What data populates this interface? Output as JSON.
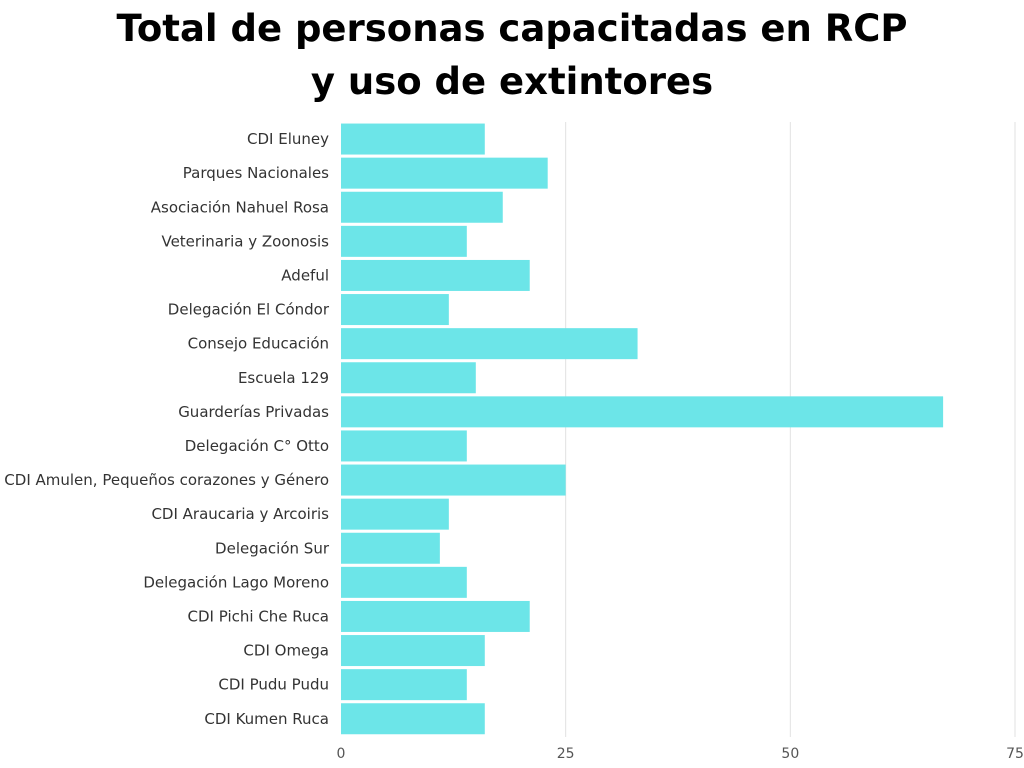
{
  "chart_data": {
    "type": "bar",
    "orientation": "horizontal",
    "title": "Total de personas capacitadas en RCP y uso de extintores",
    "title_lines": [
      "Total de personas capacitadas en RCP",
      "y uso de extintores"
    ],
    "xlabel": "",
    "ylabel": "",
    "categories": [
      "CDI Eluney",
      "Parques Nacionales",
      "Asociación Nahuel Rosa",
      "Veterinaria y Zoonosis",
      "Adeful",
      "Delegación El Cóndor",
      "Consejo Educación",
      "Escuela 129",
      "Guarderías Privadas",
      "Delegación C° Otto",
      "CDI Amulen, Pequeños corazones y Género",
      "CDI Araucaria y Arcoiris",
      "Delegación Sur",
      "Delegación Lago Moreno",
      "CDI Pichi Che Ruca",
      "CDI Omega",
      "CDI Pudu Pudu",
      "CDI Kumen Ruca"
    ],
    "values": [
      16,
      23,
      18,
      14,
      21,
      12,
      33,
      15,
      67,
      14,
      25,
      12,
      11,
      14,
      21,
      16,
      14,
      16
    ],
    "xlim": [
      0,
      75
    ],
    "xticks": [
      0,
      25,
      50,
      75
    ],
    "grid": true,
    "bar_color": "#6ce5e8"
  }
}
